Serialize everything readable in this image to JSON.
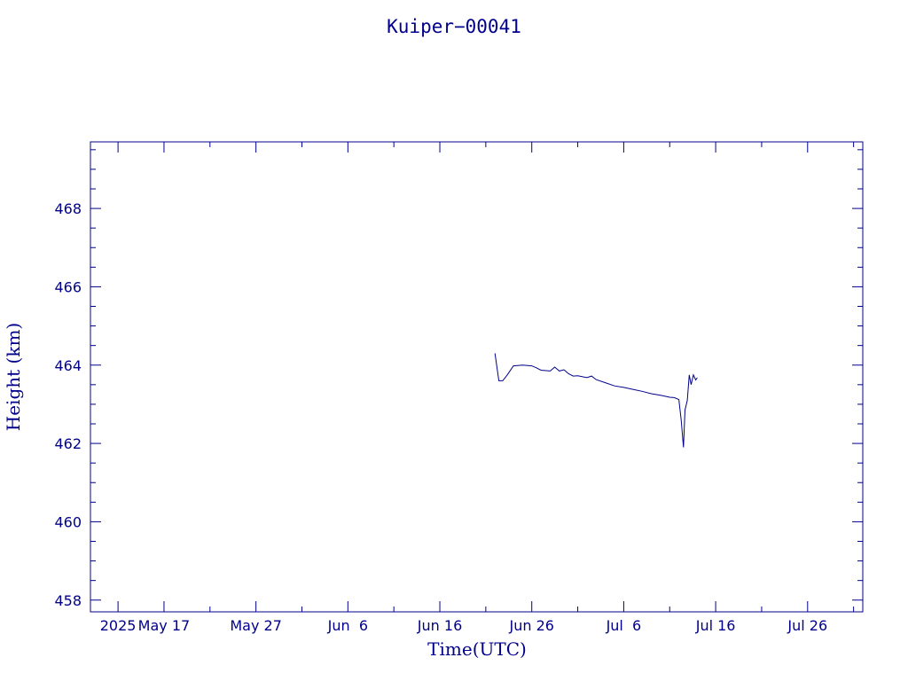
{
  "chart_data": {
    "type": "line",
    "title": "Kuiper−00041",
    "xlabel": "Time(UTC)",
    "ylabel": "Height (km)",
    "color": "#00008b",
    "xlim": [
      "2025-05-09",
      "2025-08-01"
    ],
    "ylim": [
      457.7,
      469.7
    ],
    "grid": false,
    "x_tick_labels": [
      {
        "date": "2025-05-12",
        "label": "2025"
      },
      {
        "date": "2025-05-17",
        "label": "May 17"
      },
      {
        "date": "2025-05-27",
        "label": "May 27"
      },
      {
        "date": "2025-06-06",
        "label": "Jun  6"
      },
      {
        "date": "2025-06-16",
        "label": "Jun 16"
      },
      {
        "date": "2025-06-26",
        "label": "Jun 26"
      },
      {
        "date": "2025-07-06",
        "label": "Jul  6"
      },
      {
        "date": "2025-07-16",
        "label": "Jul 16"
      },
      {
        "date": "2025-07-26",
        "label": "Jul 26"
      }
    ],
    "y_ticks": [
      458,
      460,
      462,
      464,
      466,
      468
    ],
    "series": [
      {
        "values": [
          [
            "2025-06-22T00:00",
            464.3
          ],
          [
            "2025-06-22T10:00",
            463.6
          ],
          [
            "2025-06-22T20:00",
            463.6
          ],
          [
            "2025-06-23T08:00",
            463.75
          ],
          [
            "2025-06-24T00:00",
            463.98
          ],
          [
            "2025-06-25T00:00",
            464.0
          ],
          [
            "2025-06-26T00:00",
            463.98
          ],
          [
            "2025-06-26T12:00",
            463.93
          ],
          [
            "2025-06-27T00:00",
            463.87
          ],
          [
            "2025-06-28T00:00",
            463.85
          ],
          [
            "2025-06-28T12:00",
            463.95
          ],
          [
            "2025-06-29T00:00",
            463.85
          ],
          [
            "2025-06-29T12:00",
            463.88
          ],
          [
            "2025-06-30T00:00",
            463.78
          ],
          [
            "2025-06-30T12:00",
            463.72
          ],
          [
            "2025-07-01T00:00",
            463.73
          ],
          [
            "2025-07-02T00:00",
            463.68
          ],
          [
            "2025-07-02T12:00",
            463.72
          ],
          [
            "2025-07-03T00:00",
            463.63
          ],
          [
            "2025-07-04T00:00",
            463.55
          ],
          [
            "2025-07-05T00:00",
            463.47
          ],
          [
            "2025-07-06T00:00",
            463.43
          ],
          [
            "2025-07-07T00:00",
            463.38
          ],
          [
            "2025-07-08T00:00",
            463.33
          ],
          [
            "2025-07-09T00:00",
            463.27
          ],
          [
            "2025-07-10T00:00",
            463.23
          ],
          [
            "2025-07-11T00:00",
            463.18
          ],
          [
            "2025-07-11T12:00",
            463.17
          ],
          [
            "2025-07-12T00:00",
            463.12
          ],
          [
            "2025-07-12T06:00",
            462.6
          ],
          [
            "2025-07-12T12:00",
            461.9
          ],
          [
            "2025-07-12T16:00",
            462.85
          ],
          [
            "2025-07-12T22:00",
            463.1
          ],
          [
            "2025-07-13T03:00",
            463.75
          ],
          [
            "2025-07-13T08:00",
            463.5
          ],
          [
            "2025-07-13T14:00",
            463.75
          ],
          [
            "2025-07-13T20:00",
            463.62
          ],
          [
            "2025-07-14T00:00",
            463.68
          ]
        ]
      }
    ]
  }
}
